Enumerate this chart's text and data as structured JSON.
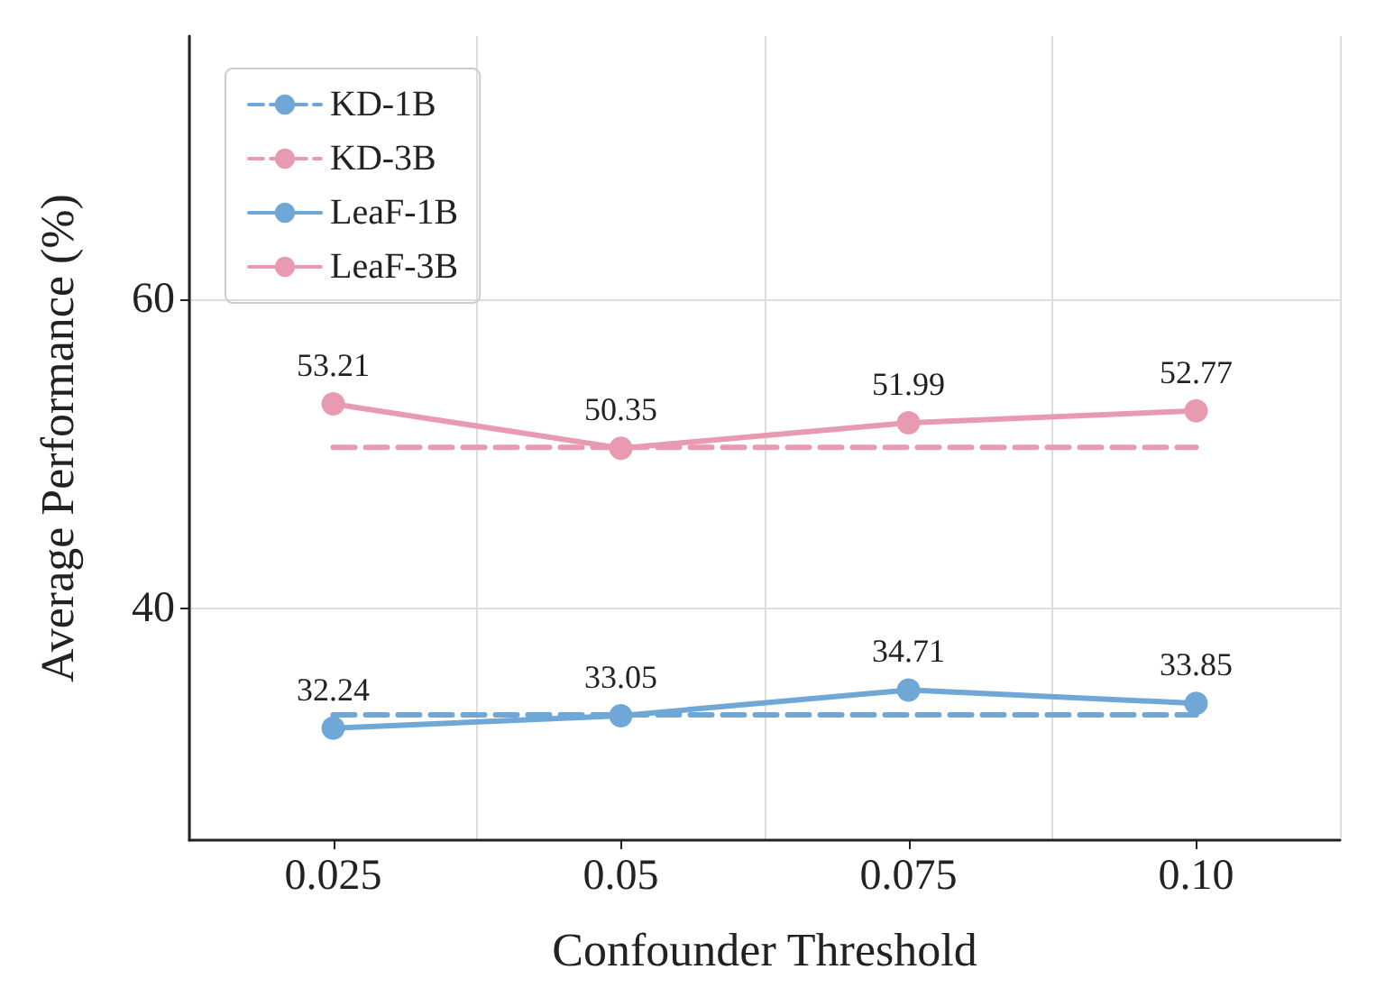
{
  "chart_data": {
    "type": "line",
    "xlabel": "Confounder Threshold",
    "ylabel": "Average Performance (%)",
    "categories": [
      "0.025",
      "0.05",
      "0.075",
      "0.10"
    ],
    "series": [
      {
        "name": "KD-1B",
        "color": "#6fa8d6",
        "values": [
          33.1,
          33.1,
          33.1,
          33.1
        ],
        "line_style": "dashed",
        "marker": "none"
      },
      {
        "name": "KD-3B",
        "color": "#e89bb0",
        "values": [
          50.4,
          50.4,
          50.4,
          50.4
        ],
        "line_style": "dashed",
        "marker": "none"
      },
      {
        "name": "LeaF-1B",
        "color": "#6fa8d6",
        "values": [
          32.24,
          33.05,
          34.71,
          33.85
        ],
        "line_style": "solid",
        "marker": "circle",
        "value_labels": [
          "32.24",
          "33.05",
          "34.71",
          "33.85"
        ]
      },
      {
        "name": "LeaF-3B",
        "color": "#e89bb0",
        "values": [
          53.21,
          50.35,
          51.99,
          52.77
        ],
        "line_style": "solid",
        "marker": "circle",
        "value_labels": [
          "53.21",
          "50.35",
          "51.99",
          "52.77"
        ]
      }
    ],
    "ylim": [
      25,
      77
    ],
    "yticks": [
      40,
      60
    ],
    "grid": true,
    "legend": "top left"
  }
}
